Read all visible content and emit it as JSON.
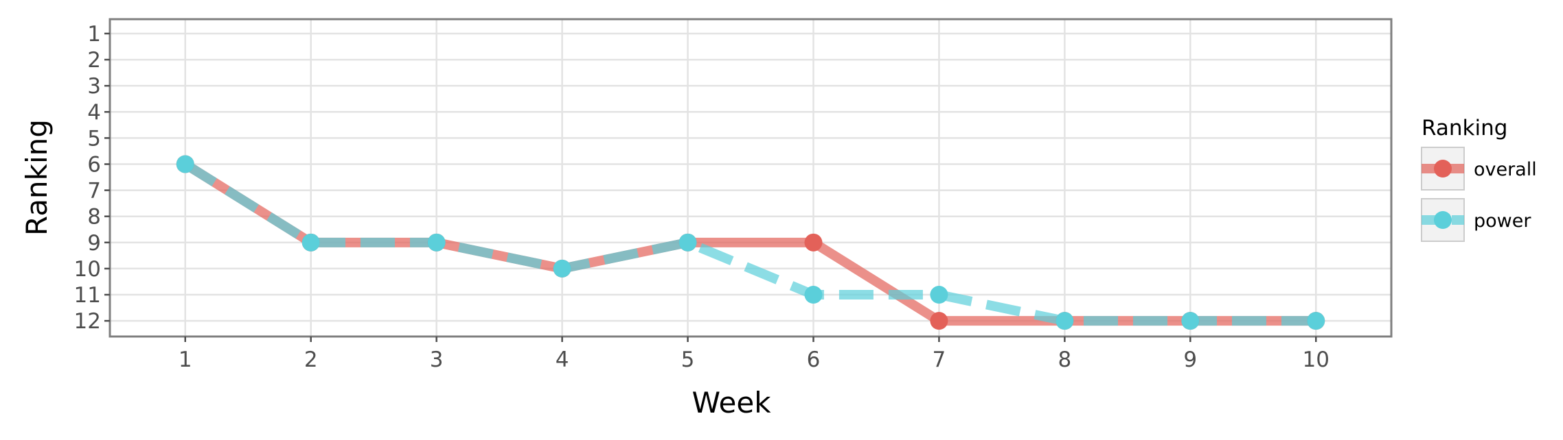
{
  "chart_data": {
    "type": "line",
    "xlabel": "Week",
    "ylabel": "Ranking",
    "x": [
      1,
      2,
      3,
      4,
      5,
      6,
      7,
      8,
      9,
      10
    ],
    "xticks": [
      "1",
      "2",
      "3",
      "4",
      "5",
      "6",
      "7",
      "8",
      "9",
      "10"
    ],
    "yticks": [
      "1",
      "2",
      "3",
      "4",
      "5",
      "6",
      "7",
      "8",
      "9",
      "10",
      "11",
      "12"
    ],
    "xlim": [
      0.4,
      10.6
    ],
    "ylim": [
      12.6,
      0.45
    ],
    "y_reversed": true,
    "grid": true,
    "legend": {
      "title": "Ranking",
      "position": "right"
    },
    "series": [
      {
        "name": "overall",
        "values": [
          6,
          9,
          9,
          10,
          9,
          9,
          12,
          12,
          12,
          12
        ],
        "color": "#E36159",
        "linestyle": "solid"
      },
      {
        "name": "power",
        "values": [
          6,
          9,
          9,
          10,
          9,
          11,
          11,
          12,
          12,
          12
        ],
        "color": "#5BCFDA",
        "linestyle": "dashed"
      }
    ]
  }
}
